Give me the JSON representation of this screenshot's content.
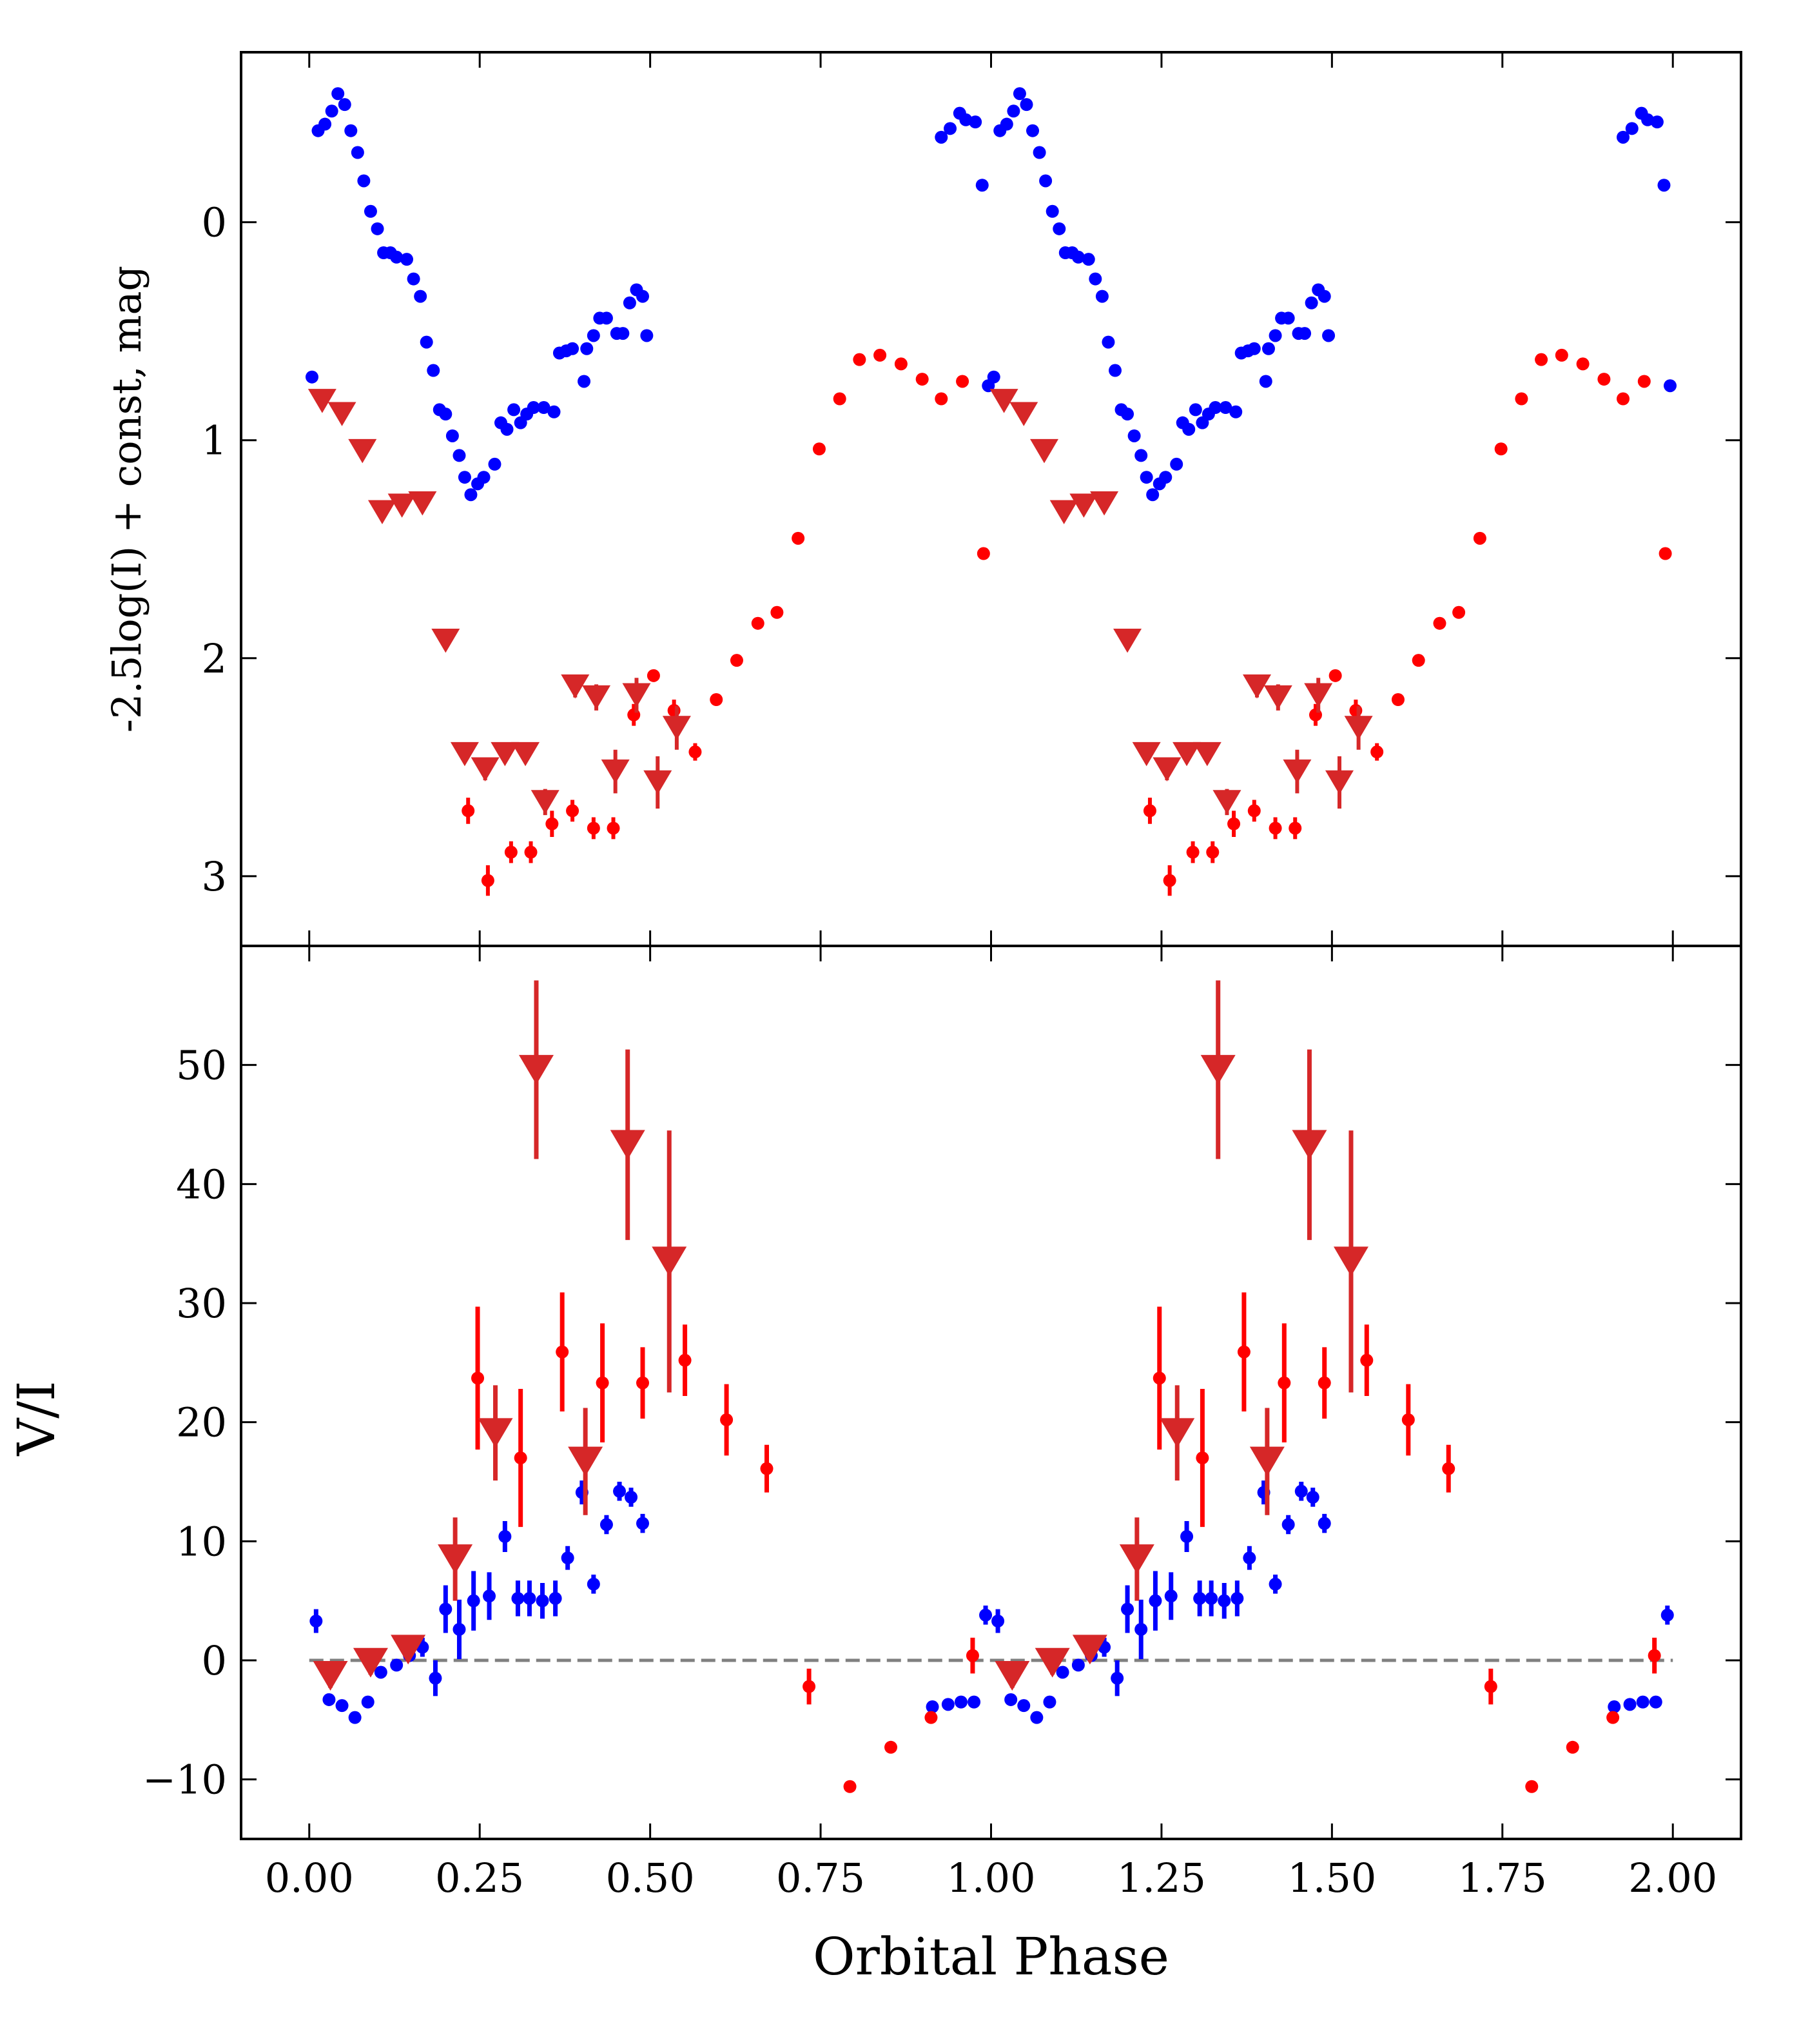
{
  "chart_data": [
    {
      "type": "scatter",
      "ylabel": "-2.5log(I) + const, mag",
      "xlim": [
        -0.1,
        2.1
      ],
      "ylim": [
        -0.78,
        3.32
      ],
      "y_inverted": true,
      "xticks": [
        0,
        0.25,
        0.5,
        0.75,
        1,
        1.25,
        1.5,
        1.75,
        2
      ],
      "yticks": [
        0,
        1,
        2,
        3
      ],
      "grid": false,
      "series": [
        {
          "color": "#0000ff",
          "marker": "circle",
          "x": [
            0.004,
            0.013,
            0.023,
            0.033,
            0.042,
            0.052,
            0.061,
            0.071,
            0.08,
            0.09,
            0.1,
            0.109,
            0.119,
            0.128,
            0.143,
            0.153,
            0.163,
            0.172,
            0.182,
            0.191,
            0.2,
            0.21,
            0.22,
            0.228,
            0.237,
            0.247,
            0.256,
            0.272,
            0.281,
            0.29,
            0.3,
            0.31,
            0.319,
            0.329,
            0.344,
            0.359,
            0.367,
            0.377,
            0.386,
            0.403,
            0.407,
            0.417,
            0.426,
            0.436,
            0.451,
            0.46,
            0.47,
            0.48,
            0.489,
            0.495,
            0.927,
            0.94,
            0.954,
            0.963,
            0.977,
            0.987,
            0.996,
            1.004,
            1.013,
            1.023,
            1.033,
            1.042,
            1.052,
            1.061,
            1.071,
            1.08,
            1.09,
            1.1,
            1.109,
            1.119,
            1.128,
            1.143,
            1.153,
            1.163,
            1.172,
            1.182,
            1.191,
            1.2,
            1.21,
            1.22,
            1.228,
            1.237,
            1.247,
            1.256,
            1.272,
            1.281,
            1.29,
            1.3,
            1.31,
            1.319,
            1.329,
            1.344,
            1.359,
            1.367,
            1.377,
            1.386,
            1.403,
            1.407,
            1.417,
            1.426,
            1.436,
            1.451,
            1.46,
            1.47,
            1.48,
            1.489,
            1.495,
            1.927,
            1.94,
            1.954,
            1.963,
            1.977,
            1.987,
            1.996
          ],
          "values": [
            0.71,
            -0.42,
            -0.45,
            -0.51,
            -0.59,
            -0.54,
            -0.42,
            -0.32,
            -0.19,
            -0.05,
            0.03,
            0.14,
            0.14,
            0.16,
            0.17,
            0.26,
            0.34,
            0.55,
            0.68,
            0.86,
            0.88,
            0.98,
            1.07,
            1.17,
            1.25,
            1.2,
            1.17,
            1.11,
            0.92,
            0.95,
            0.86,
            0.92,
            0.88,
            0.85,
            0.85,
            0.87,
            0.6,
            0.59,
            0.58,
            0.73,
            0.58,
            0.52,
            0.44,
            0.44,
            0.51,
            0.51,
            0.37,
            0.31,
            0.34,
            0.52,
            -0.39,
            -0.43,
            -0.5,
            -0.47,
            -0.46,
            -0.17,
            0.75,
            0.71,
            -0.42,
            -0.45,
            -0.51,
            -0.59,
            -0.54,
            -0.42,
            -0.32,
            -0.19,
            -0.05,
            0.03,
            0.14,
            0.14,
            0.16,
            0.17,
            0.26,
            0.34,
            0.55,
            0.68,
            0.86,
            0.88,
            0.98,
            1.07,
            1.17,
            1.25,
            1.2,
            1.17,
            1.11,
            0.92,
            0.95,
            0.86,
            0.92,
            0.88,
            0.85,
            0.85,
            0.87,
            0.6,
            0.59,
            0.58,
            0.73,
            0.58,
            0.52,
            0.44,
            0.44,
            0.51,
            0.51,
            0.37,
            0.31,
            0.34,
            0.52,
            -0.39,
            -0.43,
            -0.5,
            -0.47,
            -0.46,
            -0.17,
            0.75
          ]
        },
        {
          "color": "#ff0000",
          "marker": "circle",
          "x": [
            0.233,
            0.262,
            0.296,
            0.325,
            0.356,
            0.386,
            0.417,
            0.446,
            0.476,
            0.505,
            0.535,
            0.566,
            0.597,
            0.627,
            0.658,
            0.686,
            0.717,
            0.748,
            0.778,
            0.807,
            0.837,
            0.868,
            0.899,
            0.927,
            0.958,
            0.989,
            1.233,
            1.262,
            1.296,
            1.325,
            1.356,
            1.386,
            1.417,
            1.446,
            1.476,
            1.505,
            1.535,
            1.566,
            1.597,
            1.627,
            1.658,
            1.686,
            1.717,
            1.748,
            1.778,
            1.807,
            1.837,
            1.868,
            1.899,
            1.927,
            1.958,
            1.989
          ],
          "values": [
            2.7,
            3.02,
            2.89,
            2.89,
            2.76,
            2.7,
            2.78,
            2.78,
            2.26,
            2.08,
            2.24,
            2.43,
            2.19,
            2.01,
            1.84,
            1.79,
            1.45,
            1.04,
            0.81,
            0.63,
            0.61,
            0.65,
            0.72,
            0.81,
            0.73,
            1.52,
            2.7,
            3.02,
            2.89,
            2.89,
            2.76,
            2.7,
            2.78,
            2.78,
            2.26,
            2.08,
            2.24,
            2.43,
            2.19,
            2.01,
            1.84,
            1.79,
            1.45,
            1.04,
            0.81,
            0.63,
            0.61,
            0.65,
            0.72,
            0.81,
            0.73,
            1.52
          ],
          "yerr": [
            0.06,
            0.07,
            0.05,
            0.05,
            0.06,
            0.05,
            0.05,
            0.05,
            0.05,
            0.02,
            0.05,
            0.04,
            0.02,
            0.02,
            0.02,
            0.02,
            0.02,
            0.02,
            0.02,
            0.02,
            0.02,
            0.02,
            0.02,
            0.02,
            0.02,
            0.02,
            0.06,
            0.07,
            0.05,
            0.05,
            0.06,
            0.05,
            0.05,
            0.05,
            0.05,
            0.02,
            0.05,
            0.04,
            0.02,
            0.02,
            0.02,
            0.02,
            0.02,
            0.02,
            0.02,
            0.02,
            0.02,
            0.02,
            0.02,
            0.02,
            0.02,
            0.02
          ]
        },
        {
          "color": "#d62728",
          "marker": "triangle-down",
          "x": [
            0.019,
            0.048,
            0.078,
            0.107,
            0.136,
            0.166,
            0.2,
            0.228,
            0.258,
            0.287,
            0.317,
            0.346,
            0.39,
            0.421,
            0.449,
            0.48,
            0.511,
            0.539,
            1.019,
            1.048,
            1.078,
            1.107,
            1.136,
            1.166,
            1.2,
            1.228,
            1.258,
            1.287,
            1.317,
            1.346,
            1.39,
            1.421,
            1.449,
            1.48,
            1.511,
            1.539
          ],
          "values": [
            0.82,
            0.88,
            1.05,
            1.33,
            1.3,
            1.29,
            1.92,
            2.44,
            2.51,
            2.44,
            2.44,
            2.66,
            2.13,
            2.18,
            2.52,
            2.17,
            2.57,
            2.32,
            0.82,
            0.88,
            1.05,
            1.33,
            1.3,
            1.29,
            1.92,
            2.44,
            2.51,
            2.44,
            2.44,
            2.66,
            2.13,
            2.18,
            2.52,
            2.17,
            2.57,
            2.32
          ],
          "yerr": [
            0.02,
            0.02,
            0.02,
            0.02,
            0.02,
            0.02,
            0.02,
            0.04,
            0.05,
            0.04,
            0.04,
            0.06,
            0.05,
            0.06,
            0.1,
            0.08,
            0.12,
            0.1,
            0.02,
            0.02,
            0.02,
            0.02,
            0.02,
            0.02,
            0.02,
            0.04,
            0.05,
            0.04,
            0.04,
            0.06,
            0.05,
            0.06,
            0.1,
            0.08,
            0.12,
            0.1
          ]
        }
      ]
    },
    {
      "type": "scatter",
      "xlabel": "Orbital Phase",
      "ylabel": "V/I",
      "xlim": [
        -0.1,
        2.1
      ],
      "ylim": [
        -15,
        60
      ],
      "xticks": [
        {
          "value": 0,
          "label": "0.00"
        },
        {
          "value": 0.25,
          "label": "0.25"
        },
        {
          "value": 0.5,
          "label": "0.50"
        },
        {
          "value": 0.75,
          "label": "0.75"
        },
        {
          "value": 1,
          "label": "1.00"
        },
        {
          "value": 1.25,
          "label": "1.25"
        },
        {
          "value": 1.5,
          "label": "1.50"
        },
        {
          "value": 1.75,
          "label": "1.75"
        },
        {
          "value": 2,
          "label": "2.00"
        }
      ],
      "yticks": [
        {
          "value": -10,
          "label": "−10"
        },
        0,
        10,
        20,
        30,
        40,
        50
      ],
      "grid": false,
      "hline": 0,
      "series": [
        {
          "color": "#0000ff",
          "marker": "circle",
          "x": [
            0.01,
            0.029,
            0.048,
            0.067,
            0.086,
            0.105,
            0.128,
            0.147,
            0.166,
            0.185,
            0.2,
            0.22,
            0.241,
            0.264,
            0.287,
            0.306,
            0.323,
            0.342,
            0.361,
            0.379,
            0.4,
            0.417,
            0.436,
            0.455,
            0.472,
            0.489,
            0.914,
            0.937,
            0.956,
            0.975,
            0.992,
            1.01,
            1.029,
            1.048,
            1.067,
            1.086,
            1.105,
            1.128,
            1.147,
            1.166,
            1.185,
            1.2,
            1.22,
            1.241,
            1.264,
            1.287,
            1.306,
            1.323,
            1.342,
            1.361,
            1.379,
            1.4,
            1.417,
            1.436,
            1.455,
            1.472,
            1.489,
            1.914,
            1.937,
            1.956,
            1.975,
            1.992
          ],
          "values": [
            3.3,
            -3.3,
            -3.8,
            -4.8,
            -3.5,
            -1,
            -0.4,
            0.4,
            1.1,
            -1.5,
            4.3,
            2.6,
            5,
            5.4,
            10.4,
            5.2,
            5.2,
            5,
            5.2,
            8.6,
            14.1,
            6.4,
            11.4,
            14.2,
            13.7,
            11.5,
            -3.9,
            -3.7,
            -3.5,
            -3.5,
            3.8,
            3.3,
            -3.3,
            -3.8,
            -4.8,
            -3.5,
            -1,
            -0.4,
            0.4,
            1.1,
            -1.5,
            4.3,
            2.6,
            5,
            5.4,
            10.4,
            5.2,
            5.2,
            5,
            5.2,
            8.6,
            14.1,
            6.4,
            11.4,
            14.2,
            13.7,
            11.5,
            -3.9,
            -3.7,
            -3.5,
            -3.5,
            3.8
          ],
          "yerr": [
            1,
            0.5,
            0.5,
            0.5,
            0.5,
            0.5,
            0.5,
            0.5,
            0.8,
            1.5,
            2,
            2.5,
            2.5,
            2,
            1.3,
            1.5,
            1.5,
            1.5,
            1.5,
            1,
            1,
            0.8,
            0.8,
            0.8,
            0.8,
            0.8,
            0.5,
            0.5,
            0.5,
            0.5,
            0.8,
            1,
            0.5,
            0.5,
            0.5,
            0.5,
            0.5,
            0.5,
            0.5,
            0.8,
            1.5,
            2,
            2.5,
            2.5,
            2,
            1.3,
            1.5,
            1.5,
            1.5,
            1.5,
            1,
            1,
            0.8,
            0.8,
            0.8,
            0.8,
            0.8,
            0.5,
            0.5,
            0.5,
            0.5,
            0.8
          ]
        },
        {
          "color": "#ff0000",
          "marker": "circle",
          "x": [
            0.247,
            0.31,
            0.371,
            0.43,
            0.489,
            0.551,
            0.612,
            0.671,
            0.733,
            0.793,
            0.853,
            0.912,
            0.973,
            1.247,
            1.31,
            1.371,
            1.43,
            1.489,
            1.551,
            1.612,
            1.671,
            1.733,
            1.793,
            1.853,
            1.912,
            1.973
          ],
          "values": [
            23.7,
            17,
            25.9,
            23.3,
            23.3,
            25.2,
            20.2,
            16.1,
            -2.2,
            -10.6,
            -7.3,
            -4.8,
            0.4,
            23.7,
            17,
            25.9,
            23.3,
            23.3,
            25.2,
            20.2,
            16.1,
            -2.2,
            -10.6,
            -7.3,
            -4.8,
            0.4
          ],
          "yerr": [
            6,
            5.8,
            5,
            5,
            3,
            3,
            3,
            2,
            1.5,
            0.5,
            0.5,
            0.5,
            1.5,
            6,
            5.8,
            5,
            5,
            3,
            3,
            3,
            2,
            1.5,
            0.5,
            0.5,
            0.5,
            1.5
          ]
        },
        {
          "color": "#d62728",
          "marker": "triangle-down",
          "x": [
            0.031,
            0.09,
            0.145,
            0.214,
            0.273,
            0.333,
            0.405,
            0.467,
            0.528,
            1.031,
            1.09,
            1.145,
            1.214,
            1.273,
            1.333,
            1.405,
            1.467,
            1.528
          ],
          "values": [
            -1.3,
            -0.2,
            0.9,
            8.5,
            19.1,
            49.6,
            16.7,
            43.3,
            33.5,
            -1.3,
            -0.2,
            0.9,
            8.5,
            19.1,
            49.6,
            16.7,
            43.3,
            33.5
          ],
          "yerr": [
            1,
            1,
            1,
            3.5,
            4,
            7.5,
            4.5,
            8,
            11,
            1,
            1,
            1,
            3.5,
            4,
            7.5,
            4.5,
            8,
            11
          ]
        }
      ]
    }
  ]
}
